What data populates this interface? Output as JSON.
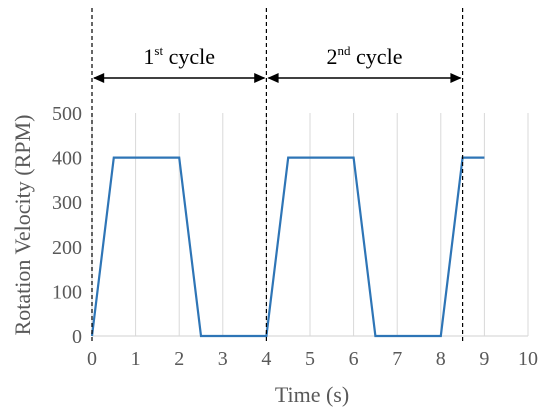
{
  "chart_data": {
    "type": "line",
    "title": "",
    "xlabel": "Time (s)",
    "ylabel": "Rotation Velocity (RPM)",
    "xlim": [
      0,
      10
    ],
    "ylim": [
      0,
      500
    ],
    "xticks": [
      "0",
      "1",
      "2",
      "3",
      "4",
      "5",
      "6",
      "7",
      "8",
      "9",
      "10"
    ],
    "yticks": [
      "0",
      "100",
      "200",
      "300",
      "400",
      "500"
    ],
    "xtick_values": [
      0,
      1,
      2,
      3,
      4,
      5,
      6,
      7,
      8,
      9,
      10
    ],
    "ytick_values": [
      0,
      100,
      200,
      300,
      400,
      500
    ],
    "grid": "vertical",
    "series": [
      {
        "color": "#2e75b6",
        "x": [
          0,
          0.5,
          2,
          2.5,
          4,
          4.5,
          6,
          6.5,
          8,
          8.5,
          9
        ],
        "y": [
          0,
          400,
          400,
          0,
          0,
          400,
          400,
          0,
          0,
          400,
          400
        ]
      }
    ],
    "cycle_boundaries": [
      0,
      4,
      8.5
    ],
    "cycles": [
      {
        "base": "1",
        "sup": "st",
        "text": " cycle",
        "from": 0,
        "to": 4
      },
      {
        "base": "2",
        "sup": "nd",
        "text": " cycle",
        "from": 4,
        "to": 8.5
      }
    ],
    "colors": {
      "line": "#2e75b6",
      "grid": "#d9d9d9",
      "text": "#595959",
      "annotation": "#000000"
    }
  }
}
